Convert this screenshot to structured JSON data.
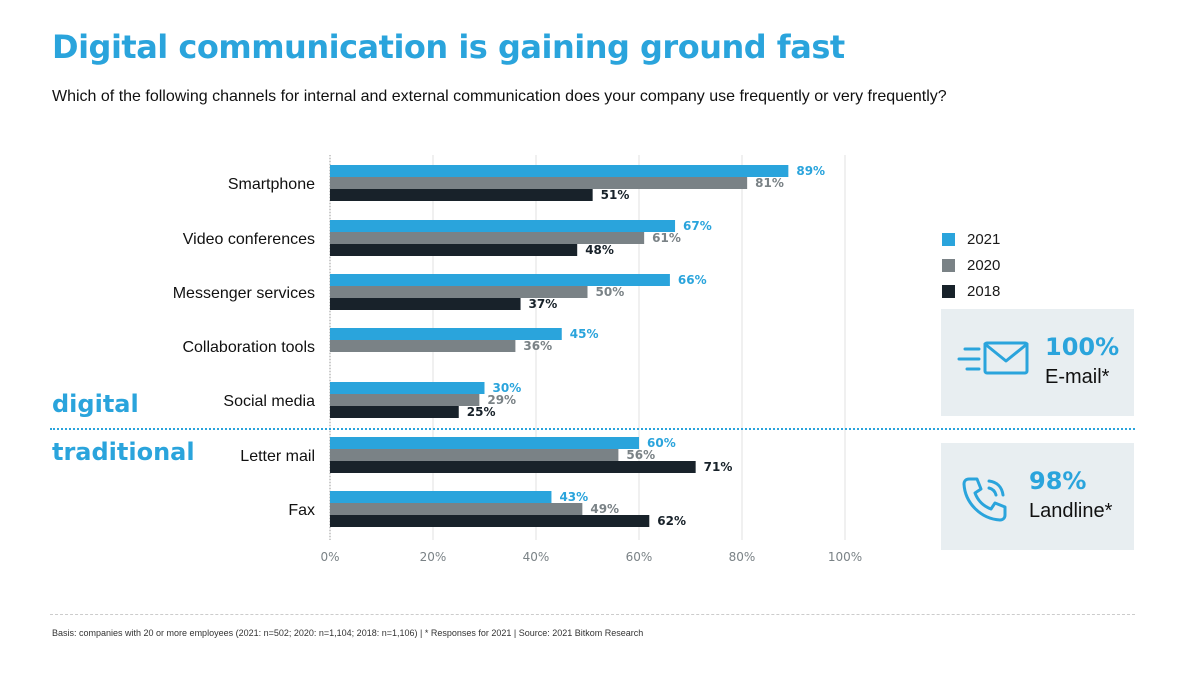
{
  "title": "Digital communication is gaining ground fast",
  "subtitle": "Which of the following channels for internal and external communication does your company use frequently or very frequently?",
  "group_labels": {
    "digital": "digital",
    "traditional": "traditional"
  },
  "legend": [
    {
      "label": "2021",
      "color": "#2aa4dc"
    },
    {
      "label": "2020",
      "color": "#7a8286"
    },
    {
      "label": "2018",
      "color": "#18222a"
    }
  ],
  "highlight_boxes": [
    {
      "value": "100%",
      "label": "E-mail*",
      "icon": "email-icon"
    },
    {
      "value": "98%",
      "label": "Landline*",
      "icon": "phone-icon"
    }
  ],
  "footnote": "Basis: companies with 20 or more employees (2021: n=502; 2020: n=1,104; 2018: n=1,106) | * Responses for 2021 | Source: 2021 Bitkom Research",
  "chart_data": {
    "type": "bar",
    "orientation": "horizontal",
    "categories": [
      "Smartphone",
      "Video conferences",
      "Messenger services",
      "Collaboration tools",
      "Social media",
      "Letter mail",
      "Fax"
    ],
    "series": [
      {
        "name": "2021",
        "color": "#2aa4dc",
        "values": [
          89,
          67,
          66,
          45,
          30,
          60,
          43
        ],
        "labels": [
          "89%",
          "67%",
          "66%",
          "45%",
          "30%",
          "60%",
          "43%"
        ]
      },
      {
        "name": "2020",
        "color": "#7a8286",
        "values": [
          81,
          61,
          50,
          36,
          29,
          56,
          49
        ],
        "labels": [
          "81%",
          "61%",
          "50%",
          "36%",
          "29%",
          "56%",
          "49%"
        ]
      },
      {
        "name": "2018",
        "color": "#18222a",
        "values": [
          51,
          48,
          37,
          null,
          25,
          71,
          62
        ],
        "labels": [
          "51%",
          "48%",
          "37%",
          "",
          "25%",
          "71%",
          "62%"
        ]
      }
    ],
    "xticks": [
      "0%",
      "20%",
      "40%",
      "60%",
      "80%",
      "100%"
    ],
    "xlim": [
      0,
      100
    ],
    "grid": true,
    "legend": "right"
  }
}
